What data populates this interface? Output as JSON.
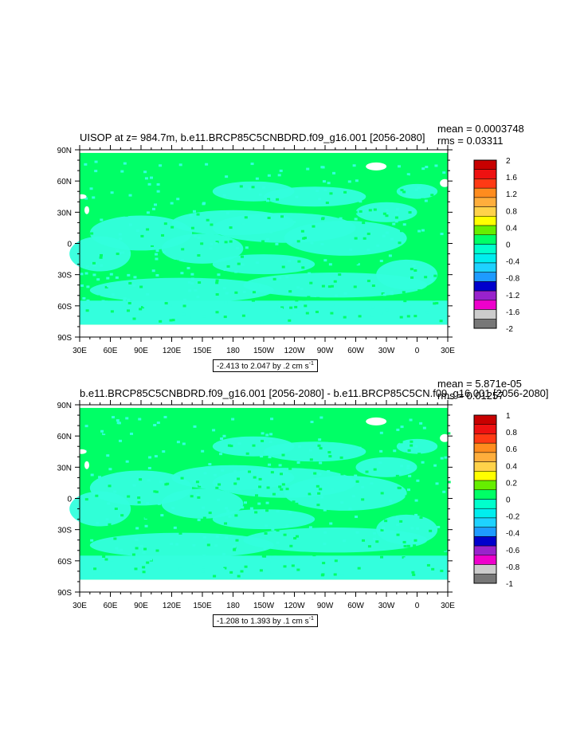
{
  "panels": [
    {
      "title": "UISOP at z= 984.7m, b.e11.BRCP85C5CNBDRD.f09_g16.001 [2056-2080]",
      "mean": "mean = 0.0003748",
      "rms": "rms = 0.03311",
      "range_text": "-2.413 to 2.047 by .2 cm s",
      "range_exp": "-1",
      "lat_labels": [
        "90N",
        "60N",
        "30N",
        "0",
        "30S",
        "60S",
        "90S"
      ],
      "lon_labels": [
        "30E",
        "60E",
        "90E",
        "120E",
        "150E",
        "180",
        "150W",
        "120W",
        "90W",
        "60W",
        "30W",
        "0",
        "30E"
      ],
      "colorbar_labels": [
        "2",
        "1.6",
        "1.2",
        "0.8",
        "0.4",
        "0",
        "-0.4",
        "-0.8",
        "-1.2",
        "-1.6",
        "-2"
      ]
    },
    {
      "title": "b.e11.BRCP85C5CNBDRD.f09_g16.001 [2056-2080] - b.e11.BRCP85C5CN.f09_g16.001 [2056-2080]",
      "mean": "mean = 5.871e-05",
      "rms": "rms = 0.01257",
      "range_text": "-1.208 to 1.393 by .1 cm s",
      "range_exp": "-1",
      "lat_labels": [
        "90N",
        "60N",
        "30N",
        "0",
        "30S",
        "60S",
        "90S"
      ],
      "lon_labels": [
        "30E",
        "60E",
        "90E",
        "120E",
        "150E",
        "180",
        "150W",
        "120W",
        "90W",
        "60W",
        "30W",
        "0",
        "30E"
      ],
      "colorbar_labels": [
        "1",
        "0.8",
        "0.6",
        "0.4",
        "0.2",
        "0",
        "-0.2",
        "-0.4",
        "-0.6",
        "-0.8",
        "-1"
      ]
    }
  ],
  "colors": {
    "colorbar": [
      "#c80000",
      "#ee1111",
      "#ff3a14",
      "#ff8c1e",
      "#ffae3c",
      "#ffd24a",
      "#ffff00",
      "#66ee00",
      "#00ff66",
      "#00ffcc",
      "#00eeee",
      "#1ed2ff",
      "#1e9bff",
      "#0000cc",
      "#9922cc",
      "#ee00cc",
      "#cccccc",
      "#777777"
    ],
    "ocean_main": "#00ff66",
    "ocean_neg": "#33ffdd",
    "missing": "#ffffff"
  }
}
